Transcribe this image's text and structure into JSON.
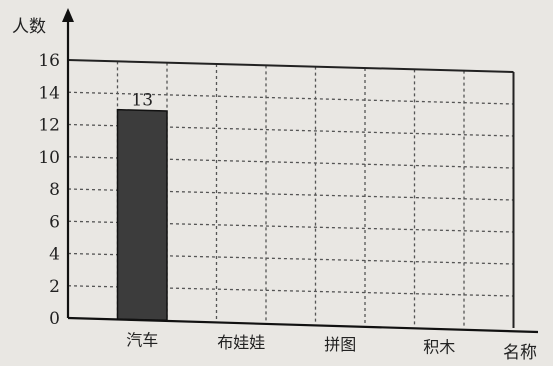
{
  "chart_data": {
    "type": "bar",
    "ylabel": "人数",
    "xlabel": "名称",
    "categories": [
      "汽车",
      "布娃娃",
      "拼图",
      "积木"
    ],
    "values": [
      13,
      null,
      null,
      null
    ],
    "data_labels": [
      "13",
      "",
      "",
      ""
    ],
    "ylim": [
      0,
      16
    ],
    "yticks": [
      0,
      2,
      4,
      6,
      8,
      10,
      12,
      14,
      16
    ],
    "grid": true,
    "bar_color": "#3c3c3c"
  }
}
